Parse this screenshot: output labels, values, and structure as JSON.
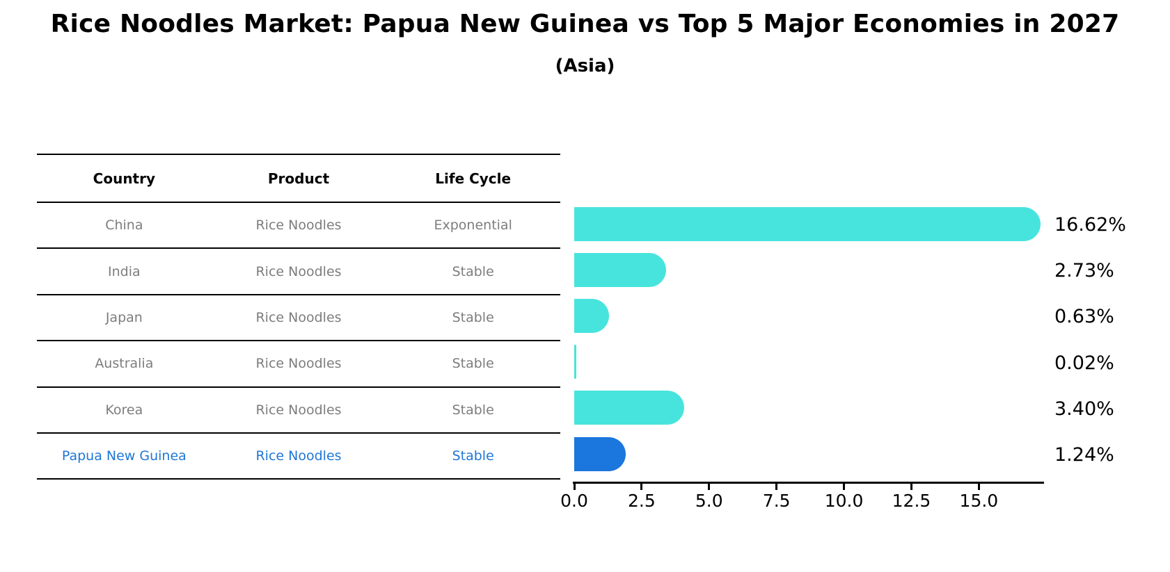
{
  "title": "Rice Noodles Market: Papua New Guinea vs Top 5 Major Economies in 2027",
  "subtitle": "(Asia)",
  "table": {
    "headers": [
      "Country",
      "Product",
      "Life Cycle"
    ],
    "rows": [
      {
        "country": "China",
        "product": "Rice Noodles",
        "life_cycle": "Exponential",
        "highlight": false
      },
      {
        "country": "India",
        "product": "Rice Noodles",
        "life_cycle": "Stable",
        "highlight": false
      },
      {
        "country": "Japan",
        "product": "Rice Noodles",
        "life_cycle": "Stable",
        "highlight": false
      },
      {
        "country": "Australia",
        "product": "Rice Noodles",
        "life_cycle": "Stable",
        "highlight": false
      },
      {
        "country": "Korea",
        "product": "Rice Noodles",
        "life_cycle": "Stable",
        "highlight": false
      },
      {
        "country": "Papua New Guinea",
        "product": "Rice Noodles",
        "life_cycle": "Stable",
        "highlight": true
      }
    ]
  },
  "chart_data": {
    "type": "bar",
    "orientation": "horizontal",
    "title": "Rice Noodles Market: Papua New Guinea vs Top 5 Major Economies in 2027 (Asia)",
    "categories": [
      "China",
      "India",
      "Japan",
      "Australia",
      "Korea",
      "Papua New Guinea"
    ],
    "values": [
      16.62,
      2.73,
      0.63,
      0.02,
      3.4,
      1.24
    ],
    "value_labels": [
      "16.62%",
      "2.73%",
      "0.63%",
      "0.02%",
      "3.40%",
      "1.24%"
    ],
    "x_tick_labels": [
      "0.0",
      "2.5",
      "5.0",
      "7.5",
      "10.0",
      "12.5",
      "15.0"
    ],
    "x_tick_values": [
      0,
      2.5,
      5,
      7.5,
      10,
      12.5,
      15
    ],
    "xlim": [
      0,
      17.45
    ],
    "grid": false,
    "legend": false,
    "highlight_index": 5,
    "highlight_style": "dotted-outline"
  },
  "colors": {
    "bar": "#47E4DD",
    "highlight_bar": "#1B76DD",
    "highlight_text": "#1F77D4",
    "row_text": "#7d7d7d",
    "axis": "#000000"
  }
}
